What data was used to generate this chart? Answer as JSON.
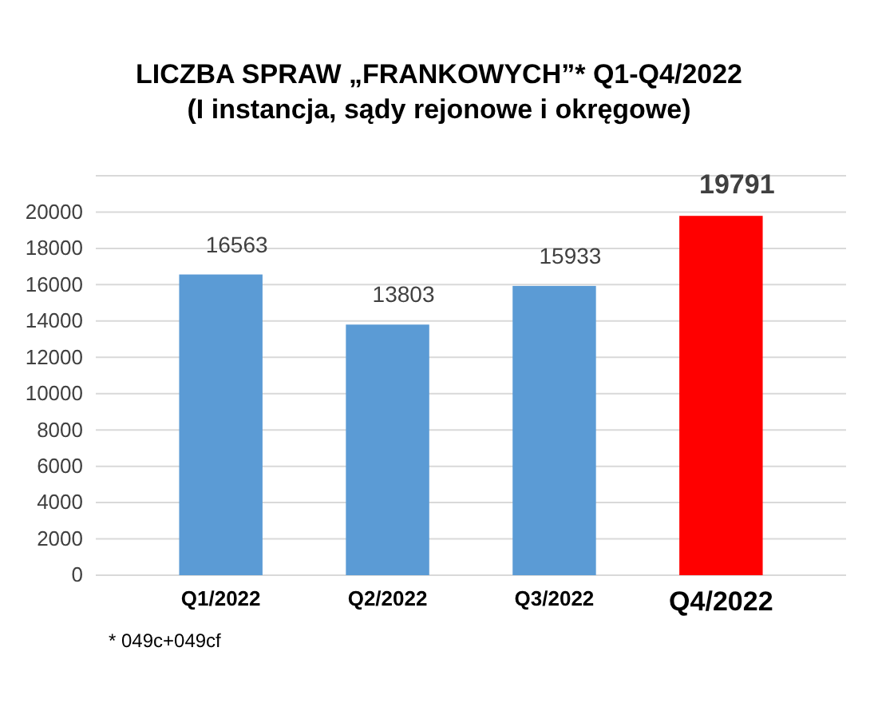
{
  "chart_data": {
    "type": "bar",
    "title": "LICZBA SPRAW „FRANKOWYCH”* Q1-Q4/2022",
    "subtitle": "(I instancja, sądy rejonowe i okręgowe)",
    "categories": [
      "Q1/2022",
      "Q2/2022",
      "Q3/2022",
      "Q4/2022"
    ],
    "values": [
      16563,
      13803,
      15933,
      19791
    ],
    "colors": [
      "#5b9bd5",
      "#5b9bd5",
      "#5b9bd5",
      "#ff0000"
    ],
    "ylim": [
      0,
      22000
    ],
    "yticks": [
      0,
      2000,
      4000,
      6000,
      8000,
      10000,
      12000,
      14000,
      16000,
      18000,
      20000,
      {
        "value": 22000,
        "label": null
      }
    ],
    "grid": "y",
    "data_labels": true,
    "annotations": [
      "* 049c+049cf"
    ]
  }
}
